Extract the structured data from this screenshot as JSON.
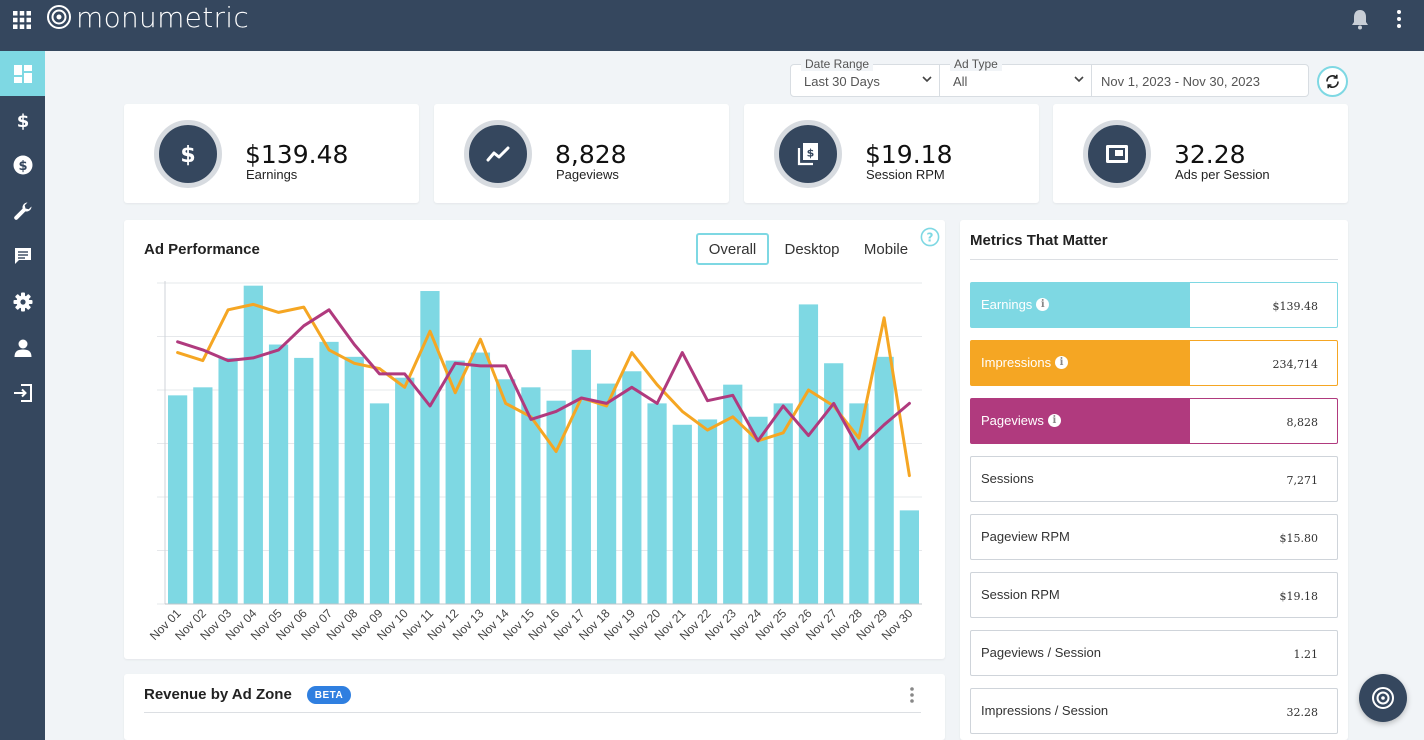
{
  "header": {
    "logo_text": "monumetric"
  },
  "sidebar": {
    "items": [
      {
        "name": "dashboard",
        "active": true
      },
      {
        "name": "earnings"
      },
      {
        "name": "payments"
      },
      {
        "name": "tools"
      },
      {
        "name": "messages"
      },
      {
        "name": "settings"
      },
      {
        "name": "account"
      },
      {
        "name": "logout"
      }
    ]
  },
  "filters": {
    "date_range": {
      "label": "Date Range",
      "value": "Last 30 Days"
    },
    "ad_type": {
      "label": "Ad Type",
      "value": "All"
    },
    "dates": "Nov 1, 2023 - Nov 30, 2023"
  },
  "stats": [
    {
      "value": "$139.48",
      "label": "Earnings",
      "icon": "dollar-icon"
    },
    {
      "value": "8,828",
      "label": "Pageviews",
      "icon": "trend-line-icon"
    },
    {
      "value": "$19.18",
      "label": "Session RPM",
      "icon": "document-dollar-icon"
    },
    {
      "value": "32.28",
      "label": "Ads per Session",
      "icon": "ad-frame-icon"
    }
  ],
  "ad_performance": {
    "title": "Ad Performance",
    "tabs": [
      {
        "label": "Overall",
        "active": true
      },
      {
        "label": "Desktop"
      },
      {
        "label": "Mobile"
      }
    ]
  },
  "chart_data": {
    "type": "bar",
    "categories": [
      "Nov 01",
      "Nov 02",
      "Nov 03",
      "Nov 04",
      "Nov 05",
      "Nov 06",
      "Nov 07",
      "Nov 08",
      "Nov 09",
      "Nov 10",
      "Nov 11",
      "Nov 12",
      "Nov 13",
      "Nov 14",
      "Nov 15",
      "Nov 16",
      "Nov 17",
      "Nov 18",
      "Nov 19",
      "Nov 20",
      "Nov 21",
      "Nov 22",
      "Nov 23",
      "Nov 24",
      "Nov 25",
      "Nov 26",
      "Nov 27",
      "Nov 28",
      "Nov 29",
      "Nov 30"
    ],
    "ylim": [
      0,
      6
    ],
    "grid": true,
    "series": [
      {
        "name": "Earnings",
        "type": "bar",
        "color": "#7ed8e3",
        "values": [
          3.9,
          4.05,
          4.6,
          5.95,
          4.85,
          4.6,
          4.9,
          4.62,
          3.75,
          4.23,
          5.85,
          4.55,
          4.7,
          4.2,
          4.05,
          3.8,
          4.75,
          4.12,
          4.35,
          3.75,
          3.35,
          3.45,
          4.1,
          3.5,
          3.75,
          5.6,
          4.5,
          3.75,
          4.62,
          1.75
        ]
      },
      {
        "name": "Impressions",
        "type": "line",
        "color": "#f5a623",
        "values": [
          4.7,
          4.55,
          5.5,
          5.6,
          5.45,
          5.55,
          4.75,
          4.5,
          4.4,
          4.05,
          5.1,
          3.95,
          4.95,
          3.75,
          3.5,
          2.85,
          3.85,
          3.7,
          4.7,
          4.1,
          3.6,
          3.25,
          3.5,
          3.05,
          3.2,
          4.0,
          3.7,
          3.1,
          5.35,
          2.4
        ]
      },
      {
        "name": "Pageviews",
        "type": "line",
        "color": "#b03a7e",
        "values": [
          4.9,
          4.75,
          4.55,
          4.6,
          4.75,
          5.2,
          5.5,
          4.85,
          4.3,
          4.3,
          3.7,
          4.5,
          4.45,
          4.45,
          3.45,
          3.6,
          3.85,
          3.75,
          4.05,
          3.75,
          4.7,
          3.8,
          3.9,
          3.05,
          3.7,
          3.15,
          3.75,
          2.9,
          3.35,
          3.75
        ]
      }
    ]
  },
  "metrics": {
    "title": "Metrics That Matter",
    "items": [
      {
        "label": "Earnings",
        "value": "$139.48",
        "color": "#7ed8e3",
        "highlight": true
      },
      {
        "label": "Impressions",
        "value": "234,714",
        "color": "#f5a623",
        "highlight": true
      },
      {
        "label": "Pageviews",
        "value": "8,828",
        "color": "#b03a7e",
        "highlight": true
      },
      {
        "label": "Sessions",
        "value": "7,271"
      },
      {
        "label": "Pageview RPM",
        "value": "$15.80"
      },
      {
        "label": "Session RPM",
        "value": "$19.18"
      },
      {
        "label": "Pageviews / Session",
        "value": "1.21"
      },
      {
        "label": "Impressions / Session",
        "value": "32.28"
      }
    ]
  },
  "revenue": {
    "title": "Revenue by Ad Zone",
    "badge": "BETA"
  },
  "colors": {
    "nav": "#35475e",
    "accent": "#7ed8e3",
    "orange": "#f5a623",
    "magenta": "#b03a7e",
    "badge": "#2f7fe0"
  }
}
